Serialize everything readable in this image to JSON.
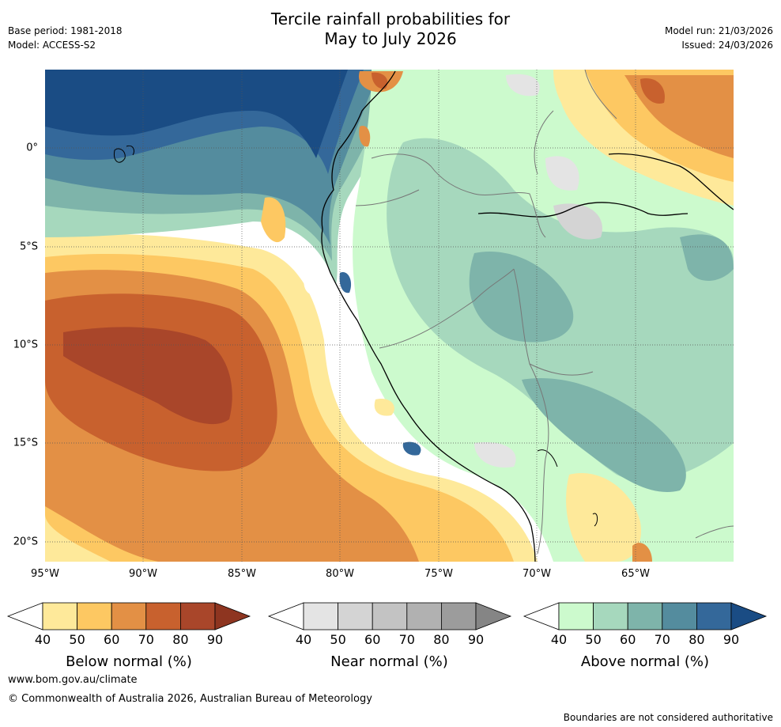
{
  "header": {
    "title_line1": "Tercile rainfall probabilities for",
    "title_line2": "May to July 2026",
    "base_period": "Base period: 1981-2018",
    "model": "Model: ACCESS-S2",
    "model_run": "Model run: 21/03/2026",
    "issued": "Issued: 24/03/2026"
  },
  "axes": {
    "lon_labels": [
      "95°W",
      "90°W",
      "85°W",
      "80°W",
      "75°W",
      "70°W",
      "65°W"
    ],
    "lat_labels": [
      "0°",
      "5°S",
      "10°S",
      "15°S",
      "20°S"
    ]
  },
  "colorbars": {
    "tick_labels": [
      "40",
      "50",
      "60",
      "70",
      "80",
      "90"
    ],
    "below": {
      "title": "Below normal (%)",
      "colors": [
        "#ffffff",
        "#fee99a",
        "#fdc862",
        "#e39045",
        "#c8612e",
        "#a9462a",
        "#8e3520"
      ]
    },
    "near": {
      "title": "Near normal (%)",
      "colors": [
        "#ffffff",
        "#e4e4e4",
        "#d4d4d4",
        "#c3c3c3",
        "#b1b1b1",
        "#9c9c9c",
        "#858585"
      ]
    },
    "above": {
      "title": "Above normal (%)",
      "colors": [
        "#ffffff",
        "#ccfacd",
        "#a6d8bd",
        "#7eb4aa",
        "#548c9e",
        "#34689a",
        "#1a4c84"
      ]
    }
  },
  "footer": {
    "website": "www.bom.gov.au/climate",
    "copyright": "© Commonwealth of Australia 2026, Australian Bureau of Meteorology",
    "disclaimer": "Boundaries are not considered authoritative"
  }
}
